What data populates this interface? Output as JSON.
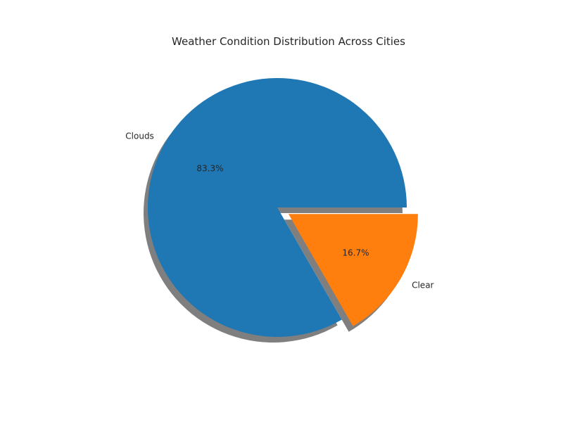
{
  "chart_data": {
    "type": "pie",
    "title": "Weather Condition Distribution Across Cities",
    "categories": [
      "Clouds",
      "Clear"
    ],
    "values": [
      83.3,
      16.7
    ],
    "value_labels": [
      "83.3%",
      "16.7%"
    ],
    "colors": [
      "#1f77b4",
      "#ff7f0e"
    ],
    "explode": [
      0,
      0.1
    ],
    "shadow": true,
    "start_angle_deg": 0,
    "direction": "counterclockwise",
    "legend": "none"
  }
}
